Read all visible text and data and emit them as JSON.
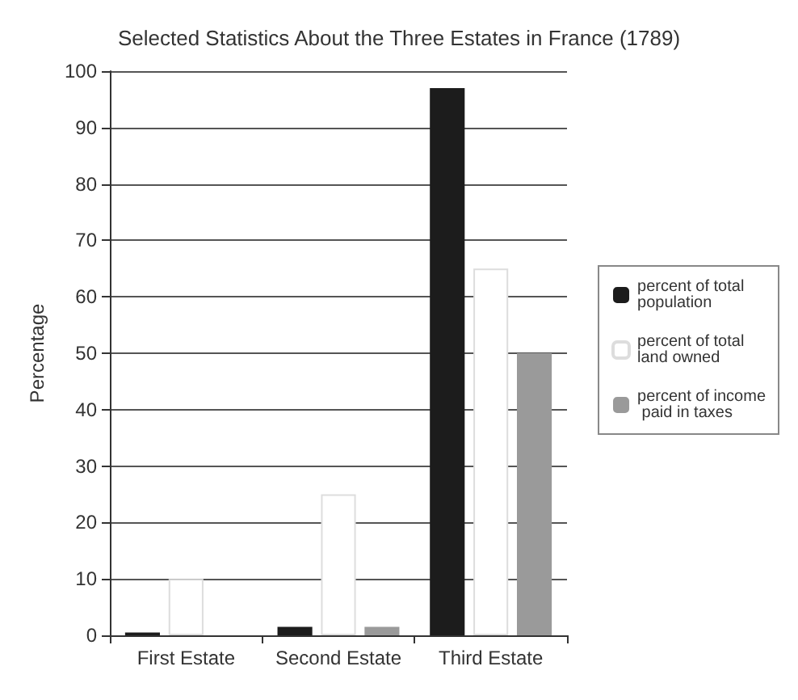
{
  "chart_data": {
    "type": "bar",
    "title": "Selected Statistics About the Three Estates in France (1789)",
    "ylabel": "Percentage",
    "categories": [
      "First Estate",
      "Second Estate",
      "Third Estate"
    ],
    "series": [
      {
        "name": "percent of total population",
        "color": "#1c1c1c",
        "values": [
          0.5,
          1.5,
          97
        ]
      },
      {
        "name": "percent of total land owned",
        "color": "#ffffff",
        "values": [
          10,
          25,
          65
        ]
      },
      {
        "name": "percent of income paid in taxes",
        "color": "#9a9a9a",
        "values": [
          0,
          1.5,
          50
        ]
      }
    ],
    "ylim": [
      0,
      100
    ],
    "yticks": [
      0,
      10,
      20,
      30,
      40,
      50,
      60,
      70,
      80,
      90,
      100
    ],
    "grid": "y",
    "legend": "right"
  }
}
